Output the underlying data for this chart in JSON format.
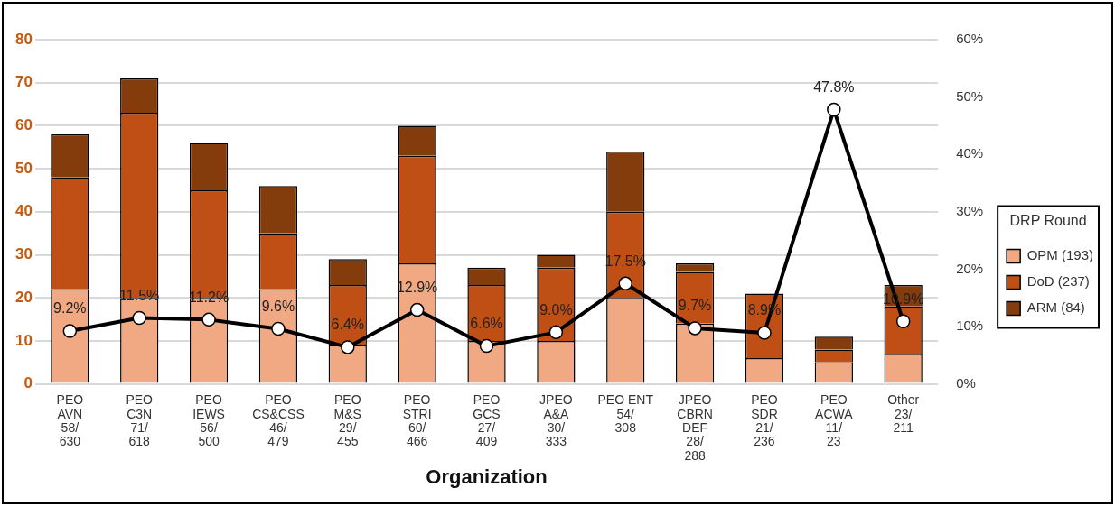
{
  "chart_data": {
    "type": "bar",
    "stacked": true,
    "xlabel": "Organization",
    "legend_title": "DRP Round",
    "legend": "right",
    "categories": [
      "PEO\nAVN\n58/\n630",
      "PEO\nC3N\n71/\n618",
      "PEO\nIEWS\n56/\n500",
      "PEO\nCS&CSS\n46/\n479",
      "PEO\nM&S\n29/\n455",
      "PEO\nSTRI\n60/\n466",
      "PEO\nGCS\n27/\n409",
      "JPEO\nA&A\n30/\n333",
      "PEO ENT\n54/\n308",
      "JPEO\nCBRN\nDEF\n28/\n288",
      "PEO\nSDR\n21/\n236",
      "PEO\nACWA\n11/\n23",
      "Other\n23/\n211"
    ],
    "series": [
      {
        "name": "OPM (193)",
        "color": "#f1a983",
        "values": [
          22,
          20,
          20,
          22,
          9,
          28,
          10,
          10,
          20,
          14,
          6,
          5,
          7
        ]
      },
      {
        "name": "DoD (237)",
        "color": "#c04f15",
        "values": [
          26,
          43,
          25,
          13,
          14,
          25,
          13,
          17,
          20,
          12,
          15,
          3,
          11
        ]
      },
      {
        "name": "ARM (84)",
        "color": "#843c0c",
        "values": [
          10,
          8,
          11,
          11,
          6,
          7,
          4,
          3,
          14,
          2,
          null,
          3,
          5
        ]
      },
      {
        "type": "line",
        "axis": "y2",
        "color": "#000000",
        "marker": "circle",
        "values": [
          9.2,
          11.5,
          11.2,
          9.6,
          6.4,
          12.9,
          6.6,
          9.0,
          17.5,
          9.7,
          8.9,
          47.8,
          10.9
        ],
        "value_labels": [
          "9.2%",
          "11.5%",
          "11.2%",
          "9.6%",
          "6.4%",
          "12.9%",
          "6.6%",
          "9.0%",
          "17.5%",
          "9.7%",
          "8.9%",
          "47.8%",
          "10.9%"
        ]
      }
    ],
    "ylim": [
      0,
      80
    ],
    "yticks": [
      0,
      10,
      20,
      30,
      40,
      50,
      60,
      70,
      80
    ],
    "y2lim": [
      0,
      60
    ],
    "y2ticks": [
      {
        "value": 0,
        "label": "0%"
      },
      {
        "value": 10,
        "label": "10%"
      },
      {
        "value": 20,
        "label": "20%"
      },
      {
        "value": 30,
        "label": "30%"
      },
      {
        "value": 40,
        "label": "40%"
      },
      {
        "value": 50,
        "label": "50%"
      },
      {
        "value": 60,
        "label": "60%"
      }
    ],
    "grid": "y"
  }
}
